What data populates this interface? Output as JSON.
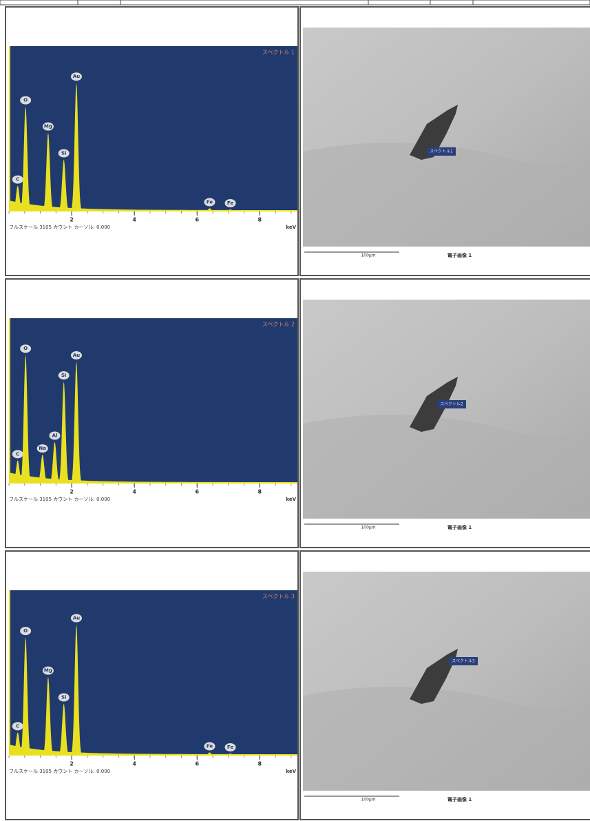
{
  "rows": [
    {
      "spectrum": {
        "name": "スペクトル 1",
        "footer": "フルスケール 3105 カウント カーソル: 0.000",
        "unit": "keV",
        "xlim": [
          0,
          9.2
        ],
        "xticks": [
          2,
          4,
          6,
          8
        ],
        "full_scale": 3105,
        "peaks": [
          {
            "label": "C",
            "kev": 0.28,
            "counts": 500
          },
          {
            "label": "O",
            "kev": 0.53,
            "counts": 2040
          },
          {
            "label": "Mg",
            "kev": 1.25,
            "counts": 1530
          },
          {
            "label": "Si",
            "kev": 1.75,
            "counts": 1010
          },
          {
            "label": "Au",
            "kev": 2.15,
            "counts": 2500
          },
          {
            "label": "Fe",
            "kev": 6.4,
            "counts": 60
          },
          {
            "label": "Fe",
            "kev": 7.06,
            "counts": 40
          }
        ]
      },
      "image": {
        "marker": "スペクトル1",
        "scale": "100µm",
        "caption": "電子画像 1"
      }
    },
    {
      "spectrum": {
        "name": "スペクトル 2",
        "footer": "フルスケール 3105 カウント カーソル: 0.000",
        "unit": "keV",
        "xlim": [
          0,
          9.2
        ],
        "xticks": [
          2,
          4,
          6,
          8
        ],
        "full_scale": 3105,
        "peaks": [
          {
            "label": "C",
            "kev": 0.28,
            "counts": 450
          },
          {
            "label": "O",
            "kev": 0.53,
            "counts": 2500
          },
          {
            "label": "Na",
            "kev": 1.07,
            "counts": 560
          },
          {
            "label": "Al",
            "kev": 1.46,
            "counts": 810
          },
          {
            "label": "Si",
            "kev": 1.75,
            "counts": 1980
          },
          {
            "label": "Au",
            "kev": 2.15,
            "counts": 2370
          }
        ]
      },
      "image": {
        "marker": "スペクトル2",
        "scale": "100µm",
        "caption": "電子画像 1"
      }
    },
    {
      "spectrum": {
        "name": "スペクトル 3",
        "footer": "フルスケール 3105 カウント カーソル: 0.000",
        "unit": "keV",
        "xlim": [
          0,
          9.2
        ],
        "xticks": [
          2,
          4,
          6,
          8
        ],
        "full_scale": 3105,
        "peaks": [
          {
            "label": "C",
            "kev": 0.28,
            "counts": 450
          },
          {
            "label": "O",
            "kev": 0.53,
            "counts": 2300
          },
          {
            "label": "Mg",
            "kev": 1.25,
            "counts": 1530
          },
          {
            "label": "Si",
            "kev": 1.75,
            "counts": 1010
          },
          {
            "label": "Au",
            "kev": 2.15,
            "counts": 2550
          },
          {
            "label": "Fe",
            "kev": 6.4,
            "counts": 60
          },
          {
            "label": "Fe",
            "kev": 7.06,
            "counts": 40
          }
        ]
      },
      "image": {
        "marker": "スペクトル3",
        "scale": "100µm",
        "caption": "電子画像 1"
      }
    }
  ]
}
